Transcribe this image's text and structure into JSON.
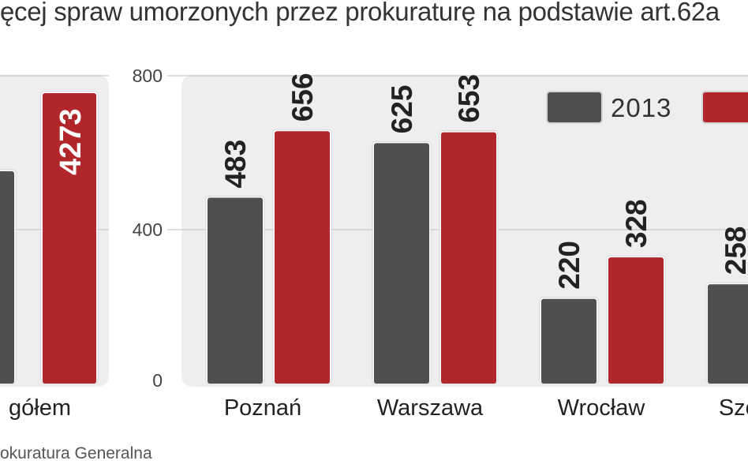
{
  "title_fragment": "ęcej spraw umorzonych przez prokuraturę na podstawie art.62a",
  "source_fragment": "okuratura Generalna",
  "colors": {
    "s2013": "#4f4f4f",
    "s2014": "#b1262a",
    "grid": "#bdbdbd",
    "panel": "#eeeeee"
  },
  "chart_data": [
    {
      "type": "bar",
      "categories": [
        "gółem"
      ],
      "series": [
        {
          "name": "2013",
          "values": [
            null
          ],
          "labels": [
            ""
          ]
        },
        {
          "name": "",
          "values": [
            4273
          ],
          "labels": [
            "4273"
          ]
        }
      ]
    },
    {
      "type": "bar",
      "categories": [
        "Poznań",
        "Warszawa",
        "Wrocław",
        "Szc"
      ],
      "ylim": [
        0,
        800
      ],
      "yticks": [
        "0",
        "400",
        "800"
      ],
      "grid": true,
      "legend": [
        "2013",
        ""
      ],
      "legend_placement": "top-right",
      "series": [
        {
          "name": "2013",
          "values": [
            483,
            625,
            220,
            258
          ],
          "labels": [
            "483",
            "625",
            "220",
            "258"
          ]
        },
        {
          "name": "",
          "values": [
            656,
            653,
            328,
            null
          ],
          "labels": [
            "656",
            "653",
            "328",
            ""
          ]
        }
      ]
    }
  ]
}
